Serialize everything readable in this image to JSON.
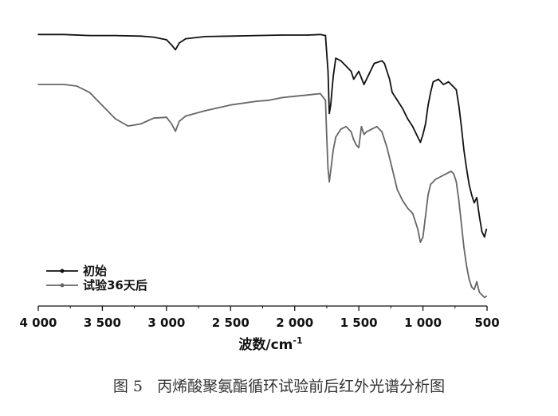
{
  "figure": {
    "caption": "图 5   丙烯酸聚氨酯循环试验前后红外光谱分析图"
  },
  "chart_data": {
    "type": "line",
    "title": "",
    "xlabel_main": "波数/cm",
    "xlabel_sup": "-1",
    "ylabel": "",
    "x_reversed": true,
    "xlim": [
      4000,
      500
    ],
    "ylim": [
      0,
      100
    ],
    "xticks": [
      4000,
      3500,
      3000,
      2500,
      2000,
      1500,
      1000,
      500
    ],
    "xtick_labels": [
      "4 000",
      "3 500",
      "3 000",
      "2 500",
      "2 000",
      "1 500",
      "1 000",
      "500"
    ],
    "legend_position": "bottom-left",
    "series": [
      {
        "name": "初始",
        "color": "#111111",
        "x": [
          4000,
          3800,
          3600,
          3400,
          3200,
          3100,
          3000,
          2960,
          2930,
          2900,
          2850,
          2700,
          2500,
          2300,
          2100,
          1900,
          1800,
          1760,
          1740,
          1730,
          1720,
          1700,
          1680,
          1640,
          1600,
          1560,
          1540,
          1500,
          1460,
          1420,
          1380,
          1320,
          1300,
          1260,
          1240,
          1200,
          1160,
          1120,
          1080,
          1040,
          1020,
          1000,
          980,
          960,
          940,
          920,
          880,
          840,
          800,
          760,
          740,
          720,
          700,
          680,
          660,
          640,
          620,
          600,
          580,
          560,
          540,
          520,
          505
        ],
        "y": [
          99.0,
          99.0,
          98.6,
          98.6,
          98.4,
          98.0,
          97.0,
          95.0,
          93.2,
          95.8,
          97.4,
          98.2,
          98.4,
          98.6,
          98.8,
          98.8,
          99.0,
          98.6,
          85.0,
          69.0,
          72.0,
          83.0,
          90.0,
          89.0,
          87.0,
          85.0,
          82.0,
          85.0,
          80.0,
          84.0,
          88.0,
          89.0,
          88.0,
          82.0,
          77.0,
          74.0,
          71.0,
          67.0,
          64.0,
          60.0,
          58.0,
          61.0,
          65.0,
          72.0,
          77.0,
          81.0,
          82.0,
          80.0,
          81.0,
          79.0,
          78.0,
          72.0,
          64.0,
          55.0,
          48.0,
          42.0,
          38.0,
          35.0,
          37.0,
          30.0,
          24.0,
          22.0,
          25.0
        ]
      },
      {
        "name": "试验36天后",
        "color": "#666666",
        "x": [
          4000,
          3800,
          3700,
          3600,
          3500,
          3400,
          3300,
          3200,
          3100,
          3000,
          2960,
          2930,
          2900,
          2850,
          2700,
          2500,
          2300,
          2200,
          2100,
          2000,
          1900,
          1800,
          1760,
          1750,
          1740,
          1730,
          1720,
          1700,
          1680,
          1640,
          1600,
          1560,
          1540,
          1520,
          1500,
          1480,
          1460,
          1440,
          1400,
          1360,
          1320,
          1280,
          1240,
          1200,
          1160,
          1120,
          1080,
          1060,
          1040,
          1020,
          1000,
          980,
          960,
          940,
          900,
          860,
          820,
          780,
          760,
          740,
          720,
          700,
          680,
          660,
          640,
          620,
          600,
          580,
          570,
          560,
          540,
          520,
          505
        ],
        "y": [
          80.0,
          80.0,
          79.4,
          77.0,
          72.0,
          67.0,
          64.2,
          65.0,
          67.2,
          67.5,
          65.0,
          62.2,
          66.0,
          68.0,
          70.0,
          72.2,
          73.6,
          74.0,
          75.0,
          75.5,
          76.0,
          76.5,
          74.0,
          60.0,
          48.0,
          43.0,
          47.0,
          55.0,
          60.0,
          63.0,
          64.0,
          62.0,
          59.0,
          57.0,
          56.0,
          64.0,
          61.0,
          62.0,
          63.0,
          64.0,
          62.0,
          56.0,
          48.0,
          40.0,
          36.0,
          33.0,
          31.0,
          28.0,
          25.0,
          20.0,
          22.0,
          30.0,
          38.0,
          42.0,
          44.0,
          45.0,
          46.0,
          47.0,
          46.0,
          43.0,
          36.0,
          27.0,
          18.0,
          11.0,
          6.0,
          3.0,
          2.0,
          5.0,
          3.0,
          1.0,
          0.0,
          -1.0,
          -0.5
        ]
      }
    ]
  }
}
